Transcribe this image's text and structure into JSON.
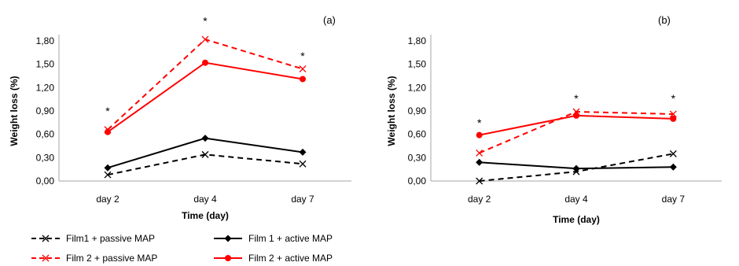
{
  "chart_data": [
    {
      "type": "line",
      "panel_label": "(a)",
      "categories": [
        "day 2",
        "day 4",
        "day 7"
      ],
      "xlabel": "Time (day)",
      "ylabel": "Weight loss (%)",
      "ylim": [
        0,
        1.8
      ],
      "yticks": [
        "0,00",
        "0,30",
        "0,60",
        "0,90",
        "1,20",
        "1,50",
        "1,80"
      ],
      "grid": false,
      "series": [
        {
          "name": "Film1 + passive MAP",
          "values": [
            0.08,
            0.34,
            0.22
          ],
          "color": "#000000",
          "dash": true,
          "marker": "x"
        },
        {
          "name": "Film 1 + active MAP",
          "values": [
            0.17,
            0.55,
            0.37
          ],
          "color": "#000000",
          "dash": false,
          "marker": "diamond"
        },
        {
          "name": "Film 2 + passive MAP",
          "values": [
            0.66,
            1.82,
            1.44
          ],
          "color": "#ff0000",
          "dash": true,
          "marker": "x"
        },
        {
          "name": "Film 2 + active MAP",
          "values": [
            0.63,
            1.52,
            1.31
          ],
          "color": "#ff0000",
          "dash": false,
          "marker": "dot"
        }
      ],
      "annotations": [
        {
          "category_index": 0,
          "y": 0.9,
          "text": "*"
        },
        {
          "category_index": 1,
          "y": 2.06,
          "text": "*"
        },
        {
          "category_index": 2,
          "y": 1.61,
          "text": "*"
        }
      ]
    },
    {
      "type": "line",
      "panel_label": "(b)",
      "categories": [
        "day 2",
        "day 4",
        "day 7"
      ],
      "xlabel": "Time (day)",
      "ylabel": "Weight loss (%)",
      "ylim": [
        0,
        1.8
      ],
      "yticks": [
        "0,00",
        "0,30",
        "0,60",
        "0,90",
        "1,20",
        "1,50",
        "1,80"
      ],
      "grid": false,
      "series": [
        {
          "name": "Film1 + passive MAP",
          "values": [
            0.0,
            0.12,
            0.35
          ],
          "color": "#000000",
          "dash": true,
          "marker": "x"
        },
        {
          "name": "Film 1 + active MAP",
          "values": [
            0.24,
            0.16,
            0.18
          ],
          "color": "#000000",
          "dash": false,
          "marker": "diamond"
        },
        {
          "name": "Film 2 + passive MAP",
          "values": [
            0.36,
            0.89,
            0.86
          ],
          "color": "#ff0000",
          "dash": true,
          "marker": "x"
        },
        {
          "name": "Film 2 + active MAP",
          "values": [
            0.59,
            0.84,
            0.8
          ],
          "color": "#ff0000",
          "dash": false,
          "marker": "dot"
        }
      ],
      "annotations": [
        {
          "category_index": 0,
          "y": 0.75,
          "text": "*"
        },
        {
          "category_index": 1,
          "y": 1.06,
          "text": "*"
        },
        {
          "category_index": 2,
          "y": 1.06,
          "text": "*"
        }
      ]
    }
  ],
  "legend": {
    "placement": "bottom-left",
    "items": [
      {
        "label": "Film1 + passive MAP",
        "color": "#000000",
        "dash": true,
        "marker": "x"
      },
      {
        "label": "Film 1 + active MAP",
        "color": "#000000",
        "dash": false,
        "marker": "diamond"
      },
      {
        "label": "Film 2 + passive MAP",
        "color": "#ff0000",
        "dash": true,
        "marker": "x"
      },
      {
        "label": "Film 2 + active MAP",
        "color": "#ff0000",
        "dash": false,
        "marker": "dot"
      }
    ]
  }
}
